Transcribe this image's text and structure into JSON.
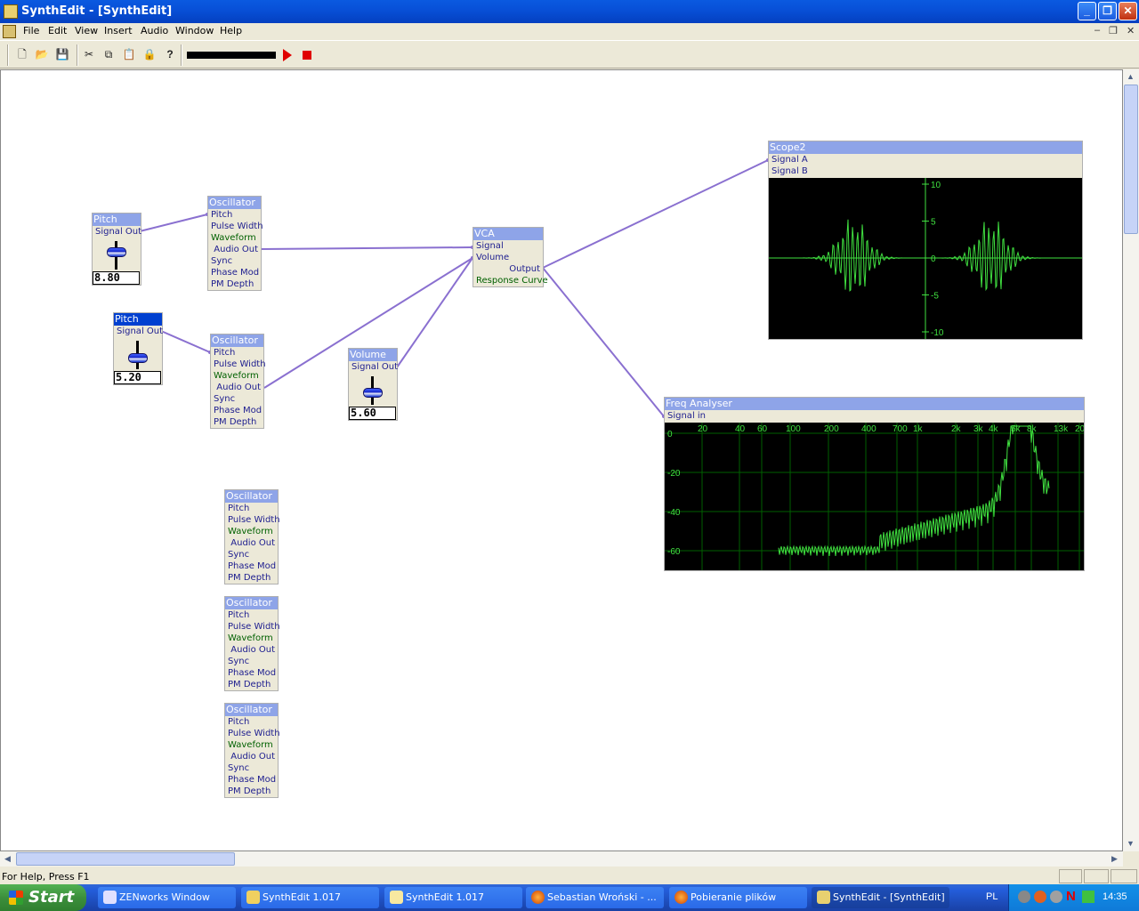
{
  "window": {
    "title": "SynthEdit - [SynthEdit]"
  },
  "menu": [
    "File",
    "Edit",
    "View",
    "Insert",
    "Audio",
    "Window",
    "Help"
  ],
  "toolbar": {
    "new": "new-icon",
    "open": "open-icon",
    "save": "save-icon",
    "help": "?"
  },
  "modules": {
    "pitch1": {
      "title": "Pitch",
      "out": "Signal Out",
      "value": "8.80",
      "level": 0.88
    },
    "pitch2": {
      "title": "Pitch",
      "out": "Signal Out",
      "value": "5.20",
      "level": 0.52
    },
    "volume": {
      "title": "Volume",
      "out": "Signal Out",
      "value": "5.60",
      "level": 0.56
    },
    "osc1": {
      "title": "Oscillator",
      "pins": [
        "Pitch",
        "Pulse Width",
        "Waveform",
        "Audio Out",
        "Sync",
        "Phase Mod",
        "PM Depth"
      ]
    },
    "osc2": {
      "title": "Oscillator",
      "pins": [
        "Pitch",
        "Pulse Width",
        "Waveform",
        "Audio Out",
        "Sync",
        "Phase Mod",
        "PM Depth"
      ]
    },
    "osc3": {
      "title": "Oscillator",
      "pins": [
        "Pitch",
        "Pulse Width",
        "Waveform",
        "Audio Out",
        "Sync",
        "Phase Mod",
        "PM Depth"
      ]
    },
    "osc4": {
      "title": "Oscillator",
      "pins": [
        "Pitch",
        "Pulse Width",
        "Waveform",
        "Audio Out",
        "Sync",
        "Phase Mod",
        "PM Depth"
      ]
    },
    "osc5": {
      "title": "Oscillator",
      "pins": [
        "Pitch",
        "Pulse Width",
        "Waveform",
        "Audio Out",
        "Sync",
        "Phase Mod",
        "PM Depth"
      ]
    },
    "vca": {
      "title": "VCA",
      "pins": [
        "Signal",
        "Volume",
        "Output",
        "Response Curve"
      ]
    },
    "scope": {
      "title": "Scope2",
      "pins": [
        "Signal A",
        "Signal B"
      ],
      "ticks": [
        "10",
        "5",
        "0",
        "-5",
        "-10"
      ]
    },
    "freq": {
      "title": "Freq Analyser",
      "pins": [
        "Signal in"
      ],
      "xticks": [
        "20",
        "40",
        "60",
        "100",
        "200",
        "400",
        "700",
        "1k",
        "2k",
        "3k",
        "4k",
        "5k",
        "8k",
        "13k",
        "20"
      ],
      "yticks": [
        "0",
        "-20",
        "-40",
        "-60"
      ]
    }
  },
  "status": {
    "text": "For Help, Press F1"
  },
  "taskbar": {
    "start": "Start",
    "tasks": [
      "ZENworks Window",
      "SynthEdit 1.017",
      "SynthEdit 1.017",
      "Sebastian Wroński - ...",
      "Pobieranie plików",
      "SynthEdit - [SynthEdit]"
    ],
    "lang": "PL",
    "clock": "14:35"
  },
  "colors": {
    "wire": "#8a70d0",
    "trace": "#40e040",
    "grid": "#006000"
  }
}
